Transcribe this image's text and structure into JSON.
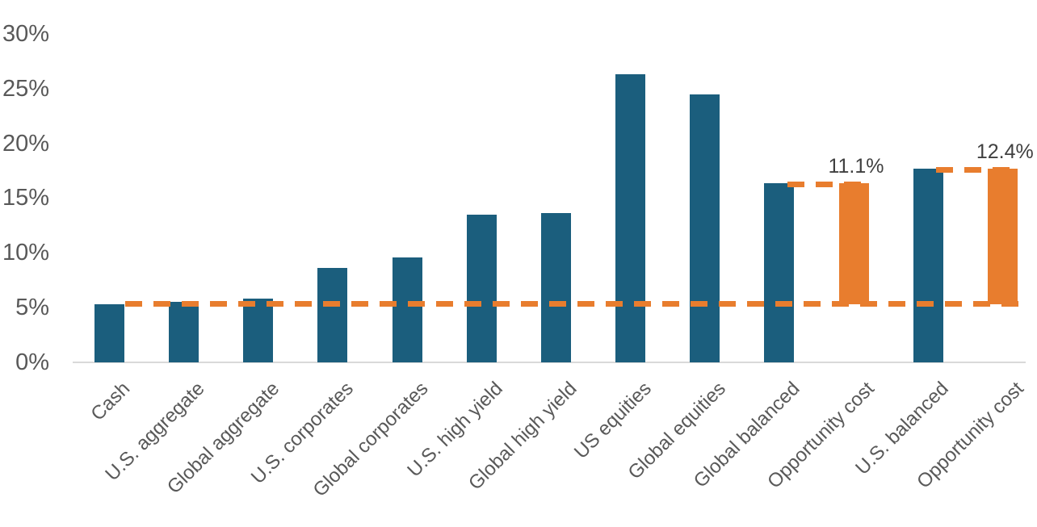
{
  "chart_data": {
    "type": "bar",
    "title": "",
    "xlabel": "",
    "ylabel": "",
    "categories": [
      "Cash",
      "U.S. aggregate",
      "Global aggregate",
      "U.S. corporates",
      "Global corporates",
      "U.S. high yield",
      "Global high yield",
      "US equities",
      "Global equities",
      "Global balanced",
      "Opportunity cost",
      "U.S. balanced",
      "Opportunity cost"
    ],
    "values": [
      5.3,
      5.5,
      5.8,
      8.6,
      9.6,
      13.5,
      13.6,
      26.3,
      24.5,
      16.4,
      11.1,
      17.7,
      12.4
    ],
    "bars": [
      {
        "category": "Cash",
        "from": 0,
        "to": 5.3,
        "color_key": "primary"
      },
      {
        "category": "U.S. aggregate",
        "from": 0,
        "to": 5.5,
        "color_key": "primary"
      },
      {
        "category": "Global aggregate",
        "from": 0,
        "to": 5.8,
        "color_key": "primary"
      },
      {
        "category": "U.S. corporates",
        "from": 0,
        "to": 8.6,
        "color_key": "primary"
      },
      {
        "category": "Global corporates",
        "from": 0,
        "to": 9.6,
        "color_key": "primary"
      },
      {
        "category": "U.S. high yield",
        "from": 0,
        "to": 13.5,
        "color_key": "primary"
      },
      {
        "category": "Global high yield",
        "from": 0,
        "to": 13.6,
        "color_key": "primary"
      },
      {
        "category": "US equities",
        "from": 0,
        "to": 26.3,
        "color_key": "primary"
      },
      {
        "category": "Global equities",
        "from": 0,
        "to": 24.5,
        "color_key": "primary"
      },
      {
        "category": "Global balanced",
        "from": 0,
        "to": 16.4,
        "color_key": "primary"
      },
      {
        "category": "Opportunity cost",
        "from": 5.3,
        "to": 16.4,
        "color_key": "highlight",
        "value_label": "11.1%",
        "connector_from_index": 9
      },
      {
        "category": "U.S. balanced",
        "from": 0,
        "to": 17.7,
        "color_key": "primary"
      },
      {
        "category": "Opportunity cost",
        "from": 5.3,
        "to": 17.7,
        "color_key": "highlight",
        "value_label": "12.4%",
        "connector_from_index": 11
      }
    ],
    "reference_line": {
      "value": 5.3,
      "style": "dashed",
      "color": "#e87d2e"
    },
    "y_axis": {
      "tick_labels": [
        "0%",
        "5%",
        "10%",
        "15%",
        "20%",
        "25%",
        "30%"
      ],
      "tick_values": [
        0,
        5,
        10,
        15,
        20,
        25,
        30
      ],
      "ylim": [
        0,
        30
      ]
    },
    "grid": "off",
    "legend": "none",
    "colors": {
      "primary": "#1b5e7d",
      "highlight": "#e87d2e",
      "axis_text": "#595959",
      "value_text": "#404040",
      "baseline": "#d9d9d9",
      "background": "#ffffff"
    }
  }
}
